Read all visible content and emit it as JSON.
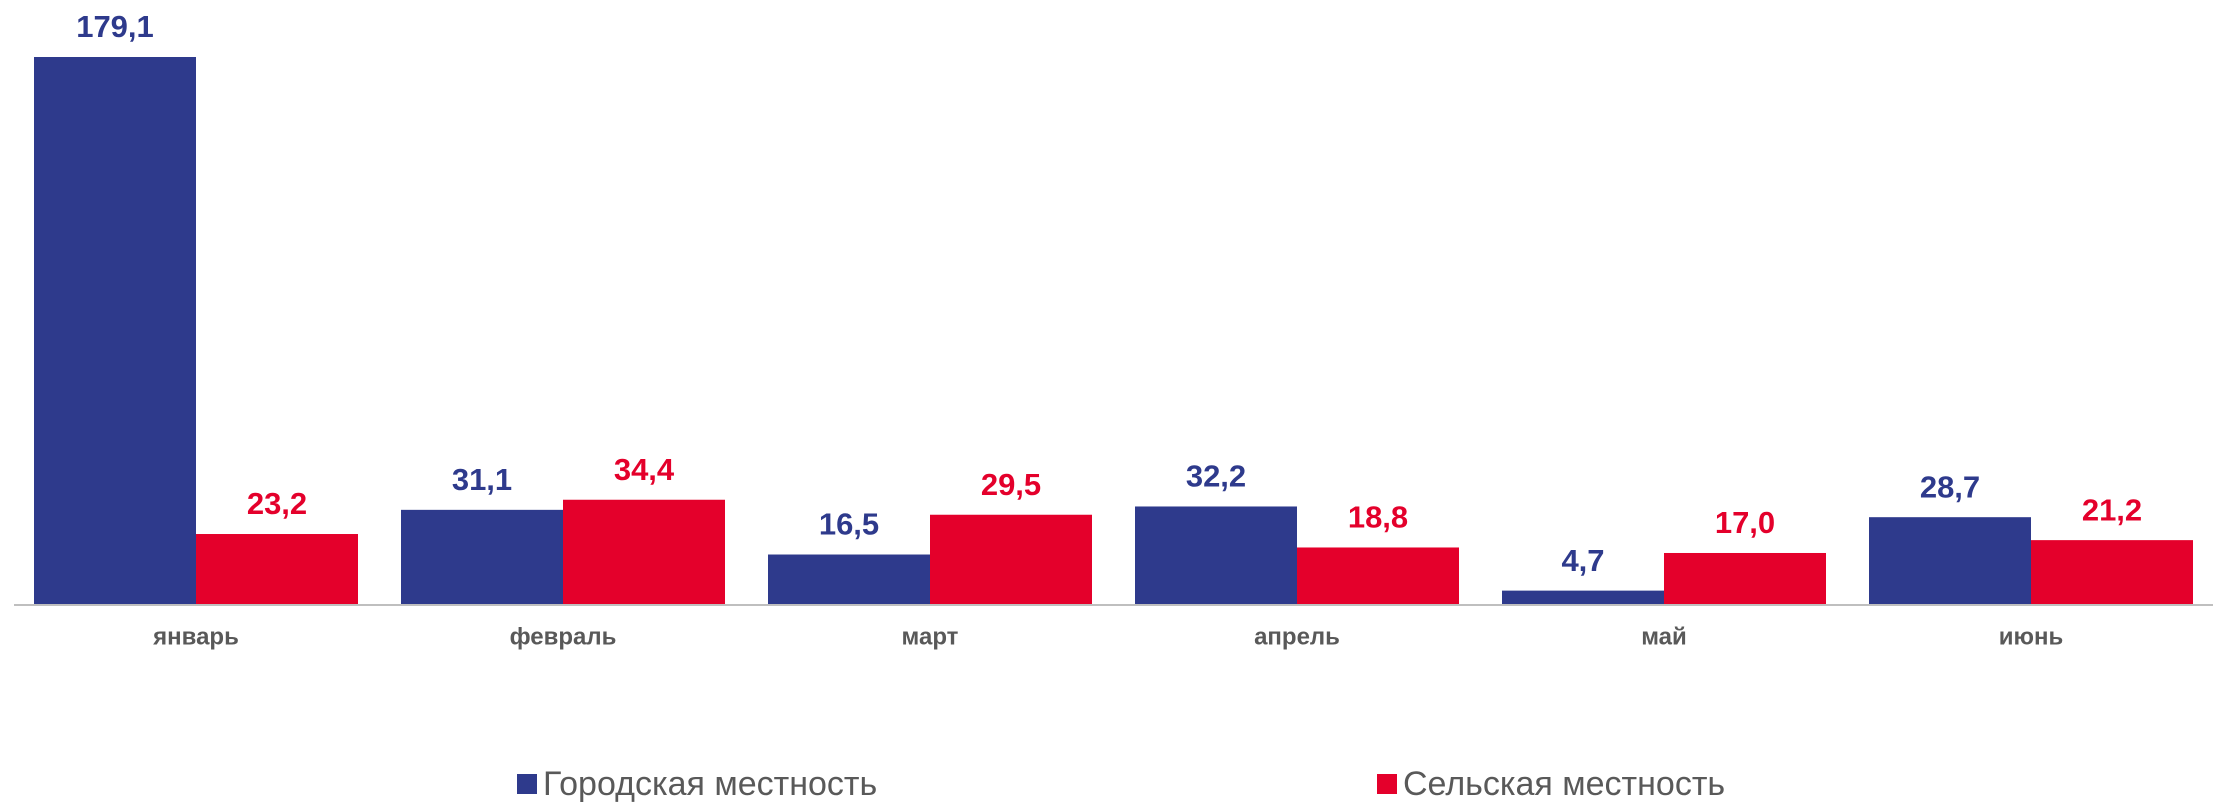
{
  "chart_data": {
    "type": "bar",
    "categories": [
      "январь",
      "февраль",
      "март",
      "апрель",
      "май",
      "июнь"
    ],
    "series": [
      {
        "name": "Городская местность",
        "color": "#2e3a8c",
        "values": [
          179.1,
          31.1,
          16.5,
          32.2,
          4.7,
          28.7
        ],
        "value_labels": [
          "179,1",
          "31,1",
          "16,5",
          "32,2",
          "4,7",
          "28,7"
        ]
      },
      {
        "name": "Сельская местность",
        "color": "#e4002b",
        "values": [
          23.2,
          34.4,
          29.5,
          18.8,
          17.0,
          21.2
        ],
        "value_labels": [
          "23,2",
          "34,4",
          "29,5",
          "18,8",
          "17,0",
          "21,2"
        ]
      }
    ],
    "legend": "bottom"
  }
}
